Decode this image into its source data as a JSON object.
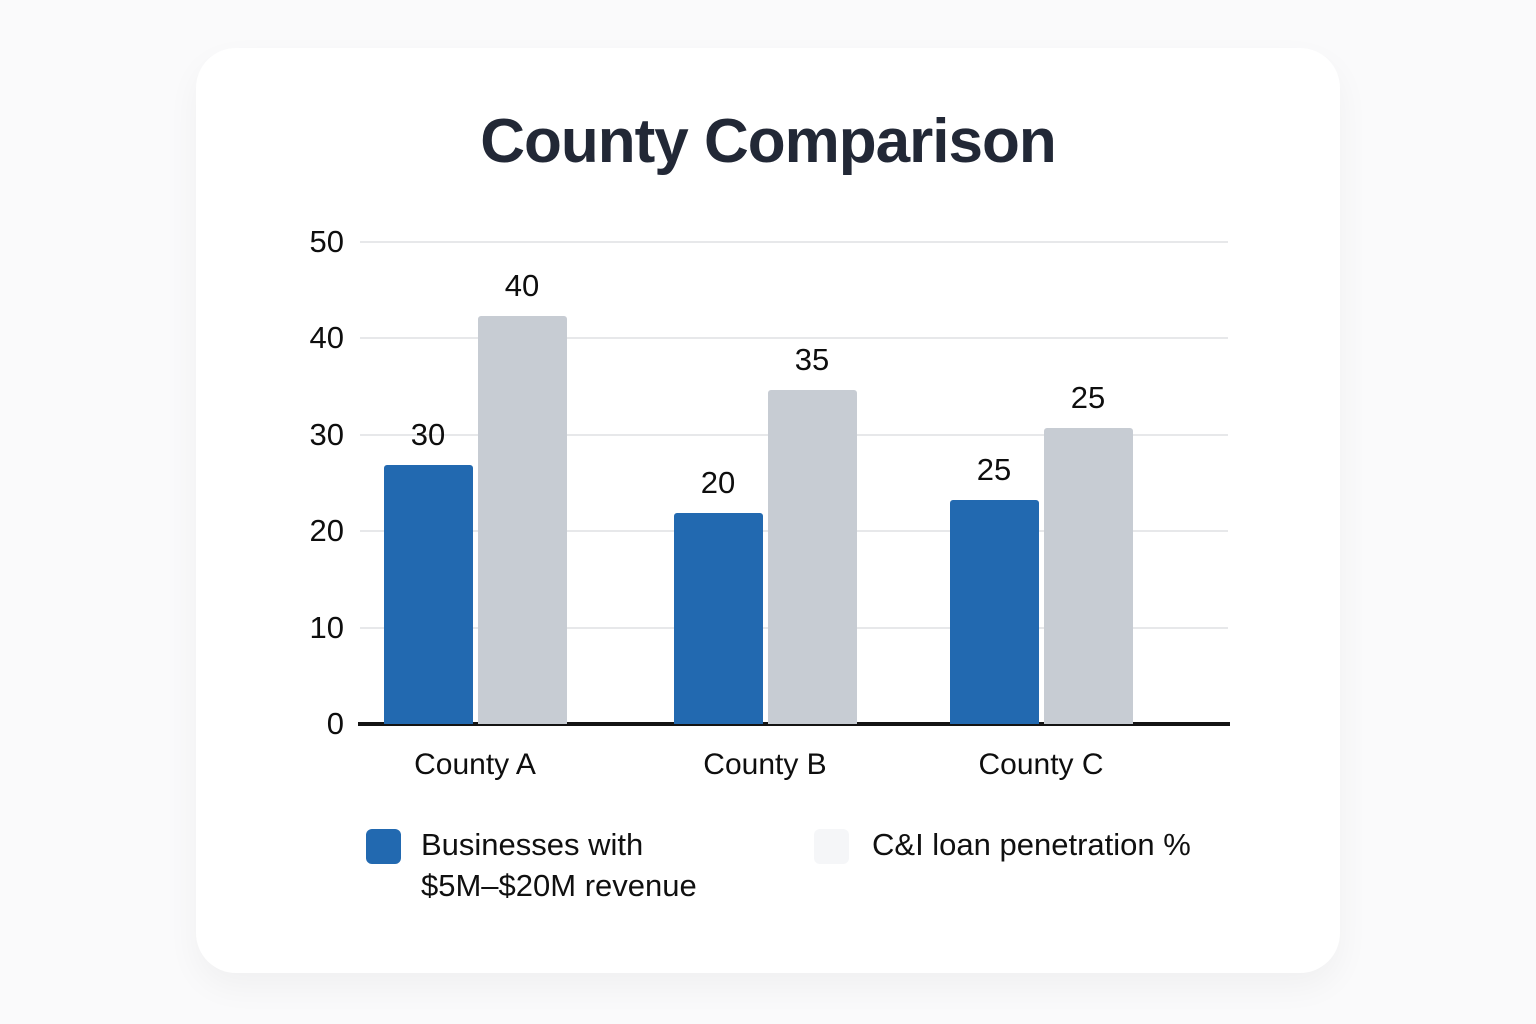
{
  "colors": {
    "page_bg": "#fafafb",
    "card_bg": "#ffffff",
    "title_text": "#222836",
    "grid": "#e7e8ea",
    "axis": "#141414",
    "blue_series": "#2269b0",
    "gray_series": "#c7ccd3",
    "ghost_swatch": "#f5f6f8"
  },
  "chart_data": {
    "type": "bar",
    "title": "County Comparison",
    "categories": [
      "County A",
      "County B",
      "County C"
    ],
    "series": [
      {
        "name": "Businesses with $5M–$20M revenue",
        "color": "#2269b0",
        "values": [
          30,
          20,
          25
        ],
        "rendered_values": [
          26.9,
          21.9,
          23.2
        ]
      },
      {
        "name": "C&I loan penetration %",
        "color": "#c7ccd3",
        "values": [
          40,
          35,
          25
        ],
        "rendered_values": [
          42.3,
          34.6,
          30.7
        ]
      }
    ],
    "xlabel": "",
    "ylabel": "",
    "ylim": [
      0,
      50
    ],
    "yticks": [
      0,
      10,
      20,
      30,
      40,
      50
    ],
    "grid": true,
    "legend_position": "bottom",
    "legend": {
      "item1_lines": [
        "Businesses with",
        "$5M–$20M revenue"
      ],
      "item2": "C&I loan penetration %"
    }
  }
}
